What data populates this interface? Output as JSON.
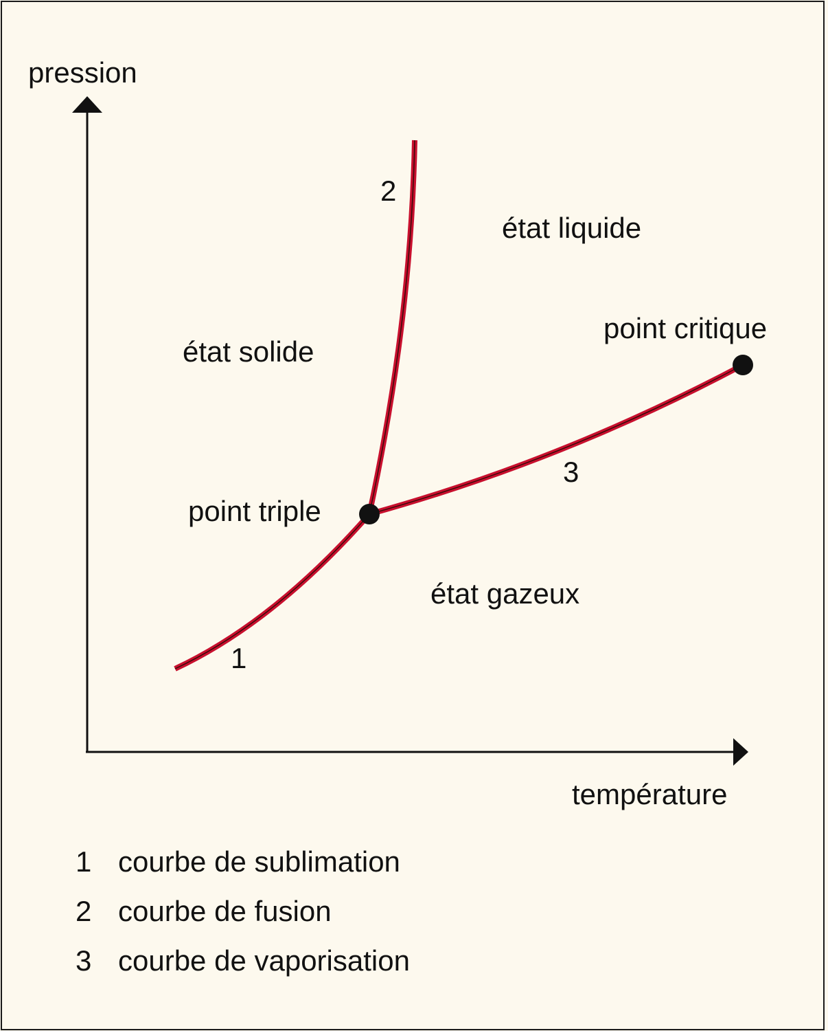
{
  "axes": {
    "y_label": "pression",
    "x_label": "température"
  },
  "regions": {
    "solid": "état solide",
    "liquid": "état liquide",
    "gas": "état gazeux"
  },
  "points": {
    "triple": "point triple",
    "critical": "point critique"
  },
  "curve_numbers": {
    "sublimation": "1",
    "fusion": "2",
    "vaporisation": "3"
  },
  "legend": [
    {
      "num": "1",
      "label": "courbe de sublimation"
    },
    {
      "num": "2",
      "label": "courbe de fusion"
    },
    {
      "num": "3",
      "label": "courbe de vaporisation"
    }
  ],
  "colors": {
    "curve": "#c8102e",
    "curve_core": "#3a0a0a",
    "axis": "#111111",
    "background": "#fdf9ee"
  }
}
